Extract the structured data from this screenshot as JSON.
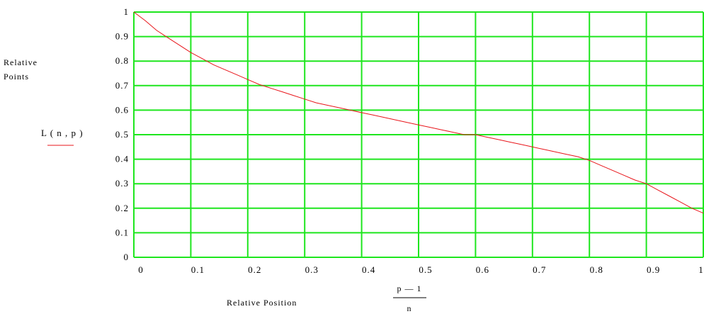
{
  "chart_data": {
    "type": "line",
    "title": "",
    "ylabel": "Relative Points",
    "xlabel": "Relative Position",
    "x_expression": {
      "numerator": "p — 1",
      "denominator": "n"
    },
    "legend": {
      "label": "L ( n , p )",
      "placement": "left",
      "color": "#e8161b"
    },
    "xlim": [
      0,
      1
    ],
    "ylim": [
      0,
      1
    ],
    "x_ticks": [
      0,
      0.1,
      0.2,
      0.3,
      0.4,
      0.5,
      0.6,
      0.7,
      0.8,
      0.9,
      1
    ],
    "x_tick_labels": [
      "0",
      "0.1",
      "0.2",
      "0.3",
      "0.4",
      "0.5",
      "0.6",
      "0.7",
      "0.8",
      "0.9",
      "1"
    ],
    "y_ticks": [
      0,
      0.1,
      0.2,
      0.3,
      0.4,
      0.5,
      0.6,
      0.7,
      0.8,
      0.9,
      1
    ],
    "y_tick_labels": [
      "0",
      "0.1",
      "0.2",
      "0.3",
      "0.4",
      "0.5",
      "0.6",
      "0.7",
      "0.8",
      "0.9",
      "1"
    ],
    "grid": true,
    "grid_color": "#1ee61e",
    "series": [
      {
        "name": "L ( n , p )",
        "color": "#e8161b",
        "x": [
          0,
          0.02,
          0.04,
          0.06,
          0.08,
          0.1,
          0.12,
          0.14,
          0.16,
          0.18,
          0.2,
          0.22,
          0.24,
          0.26,
          0.28,
          0.3,
          0.32,
          0.34,
          0.36,
          0.38,
          0.4,
          0.42,
          0.44,
          0.46,
          0.48,
          0.5,
          0.52,
          0.54,
          0.56,
          0.58,
          0.6,
          0.62,
          0.64,
          0.66,
          0.68,
          0.7,
          0.72,
          0.74,
          0.76,
          0.78,
          0.8,
          0.82,
          0.84,
          0.86,
          0.88,
          0.9,
          0.92,
          0.94,
          0.96,
          0.98,
          1.0
        ],
        "y": [
          1.0,
          0.965,
          0.925,
          0.895,
          0.865,
          0.835,
          0.81,
          0.785,
          0.765,
          0.745,
          0.725,
          0.705,
          0.69,
          0.675,
          0.66,
          0.645,
          0.63,
          0.62,
          0.61,
          0.6,
          0.59,
          0.58,
          0.57,
          0.56,
          0.55,
          0.54,
          0.53,
          0.52,
          0.51,
          0.5,
          0.5,
          0.49,
          0.48,
          0.47,
          0.46,
          0.45,
          0.44,
          0.43,
          0.42,
          0.41,
          0.395,
          0.375,
          0.355,
          0.335,
          0.315,
          0.3,
          0.275,
          0.25,
          0.225,
          0.2,
          0.18
        ]
      }
    ]
  }
}
